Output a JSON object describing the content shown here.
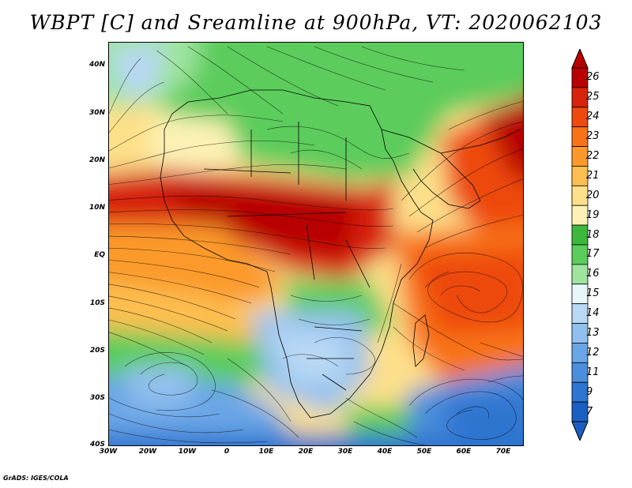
{
  "title": "WBPT [C] and Sreamline at 900hPa, VT: 2020062103",
  "credit": "GrADS: IGES/COLA",
  "lat_labels": [
    "40N",
    "30N",
    "20N",
    "10N",
    "EQ",
    "10S",
    "20S",
    "30S",
    "40S"
  ],
  "lon_labels": [
    "30W",
    "20W",
    "10W",
    "0",
    "10E",
    "20E",
    "30E",
    "40E",
    "50E",
    "60E",
    "70E"
  ],
  "colorbar": {
    "levels": [
      "26",
      "25",
      "24",
      "23",
      "22",
      "21",
      "20",
      "19",
      "18",
      "17",
      "16",
      "15",
      "14",
      "13",
      "12",
      "11",
      "9",
      "7"
    ],
    "colors": [
      "#b80000",
      "#d8240c",
      "#ee4a10",
      "#f87318",
      "#fb9a2a",
      "#fdbf50",
      "#fde08a",
      "#fdf2b5",
      "#3cb83c",
      "#5ccc5c",
      "#9ee49e",
      "#e8f7fa",
      "#b8d8f4",
      "#92c0ee",
      "#6aa6e6",
      "#4b8edc",
      "#2e74d0",
      "#1a5ec2"
    ]
  },
  "map": {
    "region": "Africa and surrounding oceans",
    "lon_range": [
      -30,
      75
    ],
    "lat_range": [
      -40,
      45
    ],
    "variable": "WBPT",
    "level": "900hPa"
  }
}
